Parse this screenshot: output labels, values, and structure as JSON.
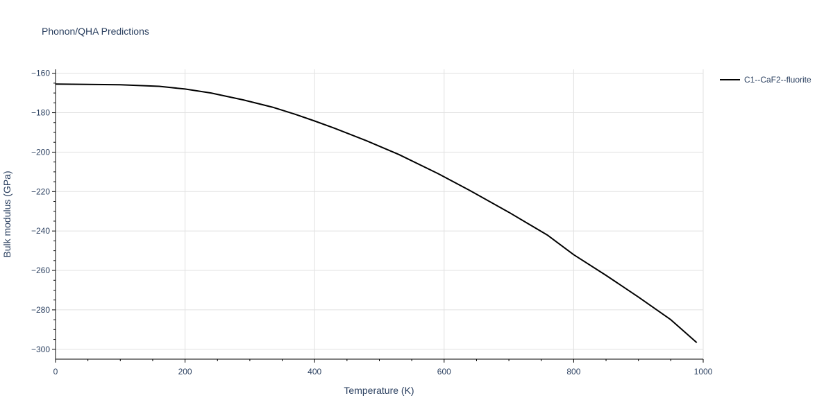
{
  "chart_data": {
    "type": "line",
    "title": "Phonon/QHA Predictions",
    "xlabel": "Temperature (K)",
    "ylabel": "Bulk modulus (GPa)",
    "xlim": [
      0,
      1000
    ],
    "ylim": [
      -305,
      -158
    ],
    "x_ticks": [
      0,
      200,
      400,
      600,
      800,
      1000
    ],
    "y_ticks": [
      -300,
      -280,
      -260,
      -240,
      -220,
      -200,
      -180,
      -160
    ],
    "x_tick_labels": [
      "0",
      "200",
      "400",
      "600",
      "800",
      "1000"
    ],
    "y_tick_labels": [
      "−300",
      "−280",
      "−260",
      "−240",
      "−220",
      "−200",
      "−180",
      "−160"
    ],
    "grid": true,
    "legend_position": "top-right",
    "series": [
      {
        "name": "C1--CaF2--fluorite",
        "color": "#000000",
        "x": [
          0,
          100,
          160,
          200,
          240,
          290,
          335,
          370,
          400,
          430,
          480,
          530,
          590,
          640,
          700,
          760,
          800,
          850,
          900,
          950,
          990
        ],
        "y": [
          -165.5,
          -165.8,
          -166.6,
          -168.0,
          -170.0,
          -173.5,
          -177.2,
          -180.8,
          -184.2,
          -187.8,
          -194.2,
          -201.2,
          -210.8,
          -219.5,
          -230.5,
          -242.2,
          -252.0,
          -262.5,
          -273.5,
          -285.0,
          -296.6
        ]
      }
    ]
  }
}
